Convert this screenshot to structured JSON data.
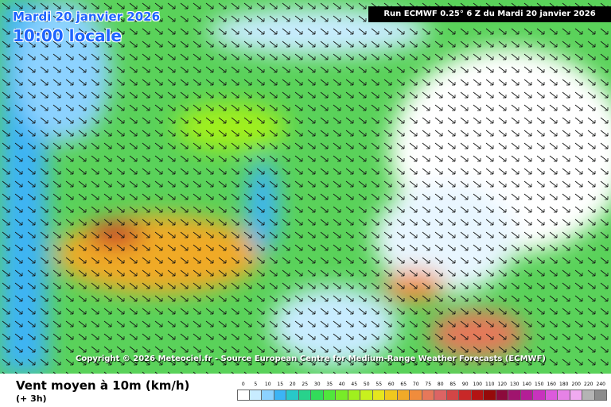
{
  "header": {
    "date": "Mardi 20 janvier 2026",
    "time": "10:00 locale",
    "run": "Run ECMWF 0.25° 6 Z du Mardi 20 janvier 2026"
  },
  "copyright": "Copyright © 2026 Meteociel.fr - Source European Centre for Medium-Range Weather Forecasts (ECMWF)",
  "legend": {
    "title": "Vent moyen à 10m (km/h)",
    "subtitle": "(+ 3h)",
    "scale": [
      {
        "value": 0,
        "color": "#ffffff"
      },
      {
        "value": 5,
        "color": "#c8ecff"
      },
      {
        "value": 10,
        "color": "#8cd2ff"
      },
      {
        "value": 15,
        "color": "#3cb4f5"
      },
      {
        "value": 20,
        "color": "#28c8c8"
      },
      {
        "value": 25,
        "color": "#28d28c"
      },
      {
        "value": 30,
        "color": "#32dc5a"
      },
      {
        "value": 35,
        "color": "#50e63c"
      },
      {
        "value": 40,
        "color": "#78eb28"
      },
      {
        "value": 45,
        "color": "#a0f01e"
      },
      {
        "value": 50,
        "color": "#c8f01e"
      },
      {
        "value": 55,
        "color": "#e6e61e"
      },
      {
        "value": 60,
        "color": "#f0c81e"
      },
      {
        "value": 65,
        "color": "#f0aa28"
      },
      {
        "value": 70,
        "color": "#f08c3c"
      },
      {
        "value": 75,
        "color": "#e6785a"
      },
      {
        "value": 80,
        "color": "#dc6464"
      },
      {
        "value": 85,
        "color": "#d24646"
      },
      {
        "value": 90,
        "color": "#c82828"
      },
      {
        "value": 100,
        "color": "#b41414"
      },
      {
        "value": 110,
        "color": "#960a0a"
      },
      {
        "value": 120,
        "color": "#8c0a3c"
      },
      {
        "value": 130,
        "color": "#a0146e"
      },
      {
        "value": 140,
        "color": "#b41e96"
      },
      {
        "value": 150,
        "color": "#c832be"
      },
      {
        "value": 160,
        "color": "#dc5adc"
      },
      {
        "value": 180,
        "color": "#e682e6"
      },
      {
        "value": 200,
        "color": "#f0aaf0"
      },
      {
        "value": 220,
        "color": "#b4b4b4"
      },
      {
        "value": 240,
        "color": "#8c8c8c"
      }
    ]
  }
}
